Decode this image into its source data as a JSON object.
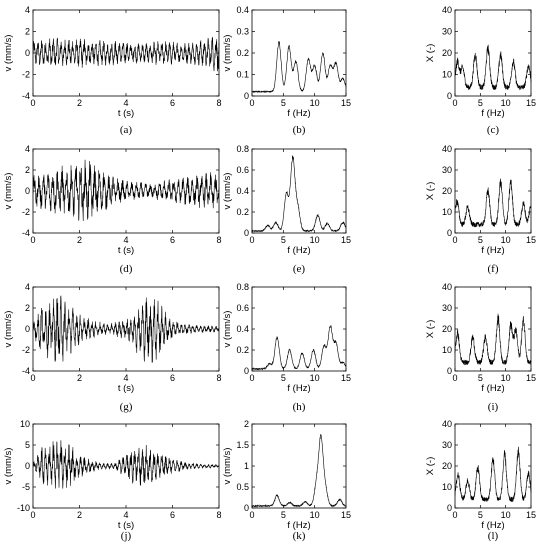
{
  "figure": {
    "rows": [
      {
        "time": {
          "label": "(a)",
          "xlabel": "t (s)",
          "ylabel": "v (mm/s)",
          "xlim": [
            0,
            8
          ],
          "ylim": [
            -4,
            4
          ],
          "xticks": [
            0,
            2,
            4,
            6,
            8
          ],
          "yticks": [
            -4,
            -2,
            0,
            2,
            4
          ],
          "envelope": [
            [
              0,
              1.2
            ],
            [
              0.5,
              1.4
            ],
            [
              1,
              1.6
            ],
            [
              1.5,
              1.3
            ],
            [
              2,
              1.5
            ],
            [
              2.5,
              1.3
            ],
            [
              3,
              1.2
            ],
            [
              3.5,
              1.2
            ],
            [
              4,
              1.1
            ],
            [
              4.5,
              1.0
            ],
            [
              5,
              1.0
            ],
            [
              5.5,
              1.2
            ],
            [
              6,
              1.1
            ],
            [
              6.5,
              1.0
            ],
            [
              7,
              1.1
            ],
            [
              7.5,
              1.5
            ],
            [
              8,
              2.2
            ]
          ],
          "cycles_per_s": 6
        },
        "spec": {
          "label": "(b)",
          "xlabel": "f (Hz)",
          "ylabel": "v (mm/s)",
          "xlim": [
            0,
            15
          ],
          "ylim": [
            0,
            0.4
          ],
          "xticks": [
            0,
            5,
            10,
            15
          ],
          "yticks": [
            0,
            0.1,
            0.2,
            0.3,
            0.4
          ],
          "peaks": [
            [
              4.3,
              0.23
            ],
            [
              5.9,
              0.21
            ],
            [
              7.0,
              0.14
            ],
            [
              9.0,
              0.15
            ],
            [
              10.0,
              0.12
            ],
            [
              11.3,
              0.18
            ],
            [
              12.5,
              0.12
            ],
            [
              13.4,
              0.13
            ],
            [
              14.5,
              0.06
            ]
          ],
          "floor": 0.02
        },
        "hvsr": {
          "label": "(c)",
          "xlabel": "f (Hz)",
          "ylabel": "X (-)",
          "xlim": [
            0,
            15
          ],
          "ylim": [
            0,
            40
          ],
          "xticks": [
            0,
            5,
            10,
            15
          ],
          "yticks": [
            0,
            10,
            20,
            30,
            40
          ],
          "peaks": [
            [
              0.5,
              12
            ],
            [
              1.5,
              9
            ],
            [
              4.0,
              15
            ],
            [
              6.5,
              18
            ],
            [
              9.0,
              15
            ],
            [
              11.5,
              12
            ],
            [
              14.5,
              10
            ]
          ],
          "floor": 4
        }
      },
      {
        "time": {
          "label": "(d)",
          "xlabel": "t (s)",
          "ylabel": "v (mm/s)",
          "xlim": [
            0,
            8
          ],
          "ylim": [
            -4,
            4
          ],
          "xticks": [
            0,
            2,
            4,
            6,
            8
          ],
          "yticks": [
            -4,
            -2,
            0,
            2,
            4
          ],
          "envelope": [
            [
              0,
              1.5
            ],
            [
              0.5,
              2.0
            ],
            [
              1,
              2.4
            ],
            [
              1.5,
              2.6
            ],
            [
              2,
              3.2
            ],
            [
              2.5,
              3.0
            ],
            [
              3,
              2.2
            ],
            [
              3.5,
              1.5
            ],
            [
              4,
              1.0
            ],
            [
              4.5,
              0.9
            ],
            [
              5,
              0.8
            ],
            [
              5.5,
              1.0
            ],
            [
              6,
              1.2
            ],
            [
              6.5,
              1.4
            ],
            [
              7,
              1.6
            ],
            [
              7.5,
              1.8
            ],
            [
              8,
              2.0
            ]
          ],
          "cycles_per_s": 5
        },
        "spec": {
          "label": "(e)",
          "xlabel": "f (Hz)",
          "ylabel": "v (mm/s)",
          "xlim": [
            0,
            15
          ],
          "ylim": [
            0,
            0.8
          ],
          "xticks": [
            0,
            5,
            10,
            15
          ],
          "yticks": [
            0,
            0.2,
            0.4,
            0.6,
            0.8
          ],
          "peaks": [
            [
              2.5,
              0.05
            ],
            [
              3.8,
              0.08
            ],
            [
              5.5,
              0.35
            ],
            [
              6.5,
              0.68
            ],
            [
              7.3,
              0.22
            ],
            [
              10.5,
              0.15
            ],
            [
              12.0,
              0.07
            ],
            [
              14.5,
              0.08
            ]
          ],
          "floor": 0.02
        },
        "hvsr": {
          "label": "(f)",
          "xlabel": "f (Hz)",
          "ylabel": "X (-)",
          "xlim": [
            0,
            15
          ],
          "ylim": [
            0,
            40
          ],
          "xticks": [
            0,
            5,
            10,
            15
          ],
          "yticks": [
            0,
            10,
            20,
            30,
            40
          ],
          "peaks": [
            [
              0.4,
              11
            ],
            [
              2.5,
              8
            ],
            [
              6.5,
              16
            ],
            [
              9.0,
              20
            ],
            [
              11.0,
              20
            ],
            [
              13.5,
              10
            ],
            [
              15,
              9
            ]
          ],
          "floor": 4
        }
      },
      {
        "time": {
          "label": "(g)",
          "xlabel": "t (s)",
          "ylabel": "v (mm/s)",
          "xlim": [
            0,
            8
          ],
          "ylim": [
            -4,
            4
          ],
          "xticks": [
            0,
            2,
            4,
            6,
            8
          ],
          "yticks": [
            -4,
            -2,
            0,
            2,
            4
          ],
          "envelope": [
            [
              0,
              0.5
            ],
            [
              0.3,
              2.5
            ],
            [
              0.8,
              3.0
            ],
            [
              1.2,
              3.8
            ],
            [
              1.7,
              2.2
            ],
            [
              2.2,
              1.2
            ],
            [
              2.7,
              0.8
            ],
            [
              3.2,
              0.6
            ],
            [
              3.7,
              0.8
            ],
            [
              4.2,
              1.5
            ],
            [
              4.7,
              3.0
            ],
            [
              5.2,
              3.6
            ],
            [
              5.6,
              2.0
            ],
            [
              6.0,
              1.0
            ],
            [
              6.5,
              0.6
            ],
            [
              7,
              0.4
            ],
            [
              8,
              0.3
            ]
          ],
          "cycles_per_s": 6
        },
        "spec": {
          "label": "(h)",
          "xlabel": "f (Hz)",
          "ylabel": "v (mm/s)",
          "xlim": [
            0,
            15
          ],
          "ylim": [
            0,
            0.8
          ],
          "xticks": [
            0,
            5,
            10,
            15
          ],
          "yticks": [
            0,
            0.2,
            0.4,
            0.6,
            0.8
          ],
          "peaks": [
            [
              2.8,
              0.05
            ],
            [
              4.0,
              0.3
            ],
            [
              6.0,
              0.18
            ],
            [
              8.0,
              0.15
            ],
            [
              9.8,
              0.18
            ],
            [
              11.5,
              0.22
            ],
            [
              12.5,
              0.4
            ],
            [
              13.4,
              0.24
            ],
            [
              14.5,
              0.06
            ]
          ],
          "floor": 0.02
        },
        "hvsr": {
          "label": "(i)",
          "xlabel": "f (Hz)",
          "ylabel": "X (-)",
          "xlim": [
            0,
            15
          ],
          "ylim": [
            0,
            40
          ],
          "xticks": [
            0,
            5,
            10,
            15
          ],
          "yticks": [
            0,
            10,
            20,
            30,
            40
          ],
          "peaks": [
            [
              0.5,
              14
            ],
            [
              3.5,
              12
            ],
            [
              6.0,
              12
            ],
            [
              8.5,
              21
            ],
            [
              11.0,
              18
            ],
            [
              12.0,
              15
            ],
            [
              13.5,
              20
            ]
          ],
          "floor": 4
        }
      },
      {
        "time": {
          "label": "(j)",
          "xlabel": "t (s)",
          "ylabel": "v (mm/s)",
          "xlim": [
            0,
            8
          ],
          "ylim": [
            -10,
            10
          ],
          "xticks": [
            0,
            2,
            4,
            6,
            8
          ],
          "yticks": [
            -10,
            -5,
            0,
            5,
            10
          ],
          "envelope": [
            [
              0,
              0.6
            ],
            [
              0.4,
              5.0
            ],
            [
              0.8,
              6.5
            ],
            [
              1.2,
              7.2
            ],
            [
              1.6,
              5.5
            ],
            [
              2.0,
              3.0
            ],
            [
              2.5,
              1.5
            ],
            [
              3.0,
              0.8
            ],
            [
              3.5,
              0.8
            ],
            [
              4.0,
              3.0
            ],
            [
              4.5,
              5.5
            ],
            [
              5.0,
              5.0
            ],
            [
              5.5,
              3.5
            ],
            [
              6,
              2.0
            ],
            [
              6.5,
              1.2
            ],
            [
              7,
              0.6
            ],
            [
              8,
              0.4
            ]
          ],
          "cycles_per_s": 6
        },
        "spec": {
          "label": "(k)",
          "xlabel": "f (Hz)",
          "ylabel": "v (mm/s)",
          "xlim": [
            0,
            15
          ],
          "ylim": [
            0,
            2
          ],
          "xticks": [
            0,
            5,
            10,
            15
          ],
          "yticks": [
            0,
            0.5,
            1,
            1.5,
            2
          ],
          "peaks": [
            [
              4.0,
              0.25
            ],
            [
              6.0,
              0.08
            ],
            [
              8.5,
              0.1
            ],
            [
              10.3,
              0.5
            ],
            [
              11.0,
              1.55
            ],
            [
              11.7,
              0.4
            ],
            [
              14.0,
              0.15
            ]
          ],
          "floor": 0.05
        },
        "hvsr": {
          "label": "(l)",
          "xlabel": "f (Hz)",
          "ylabel": "X (-)",
          "xlim": [
            0,
            15
          ],
          "ylim": [
            0,
            40
          ],
          "xticks": [
            0,
            5,
            10,
            15
          ],
          "yticks": [
            0,
            10,
            20,
            30,
            40
          ],
          "peaks": [
            [
              0.6,
              12
            ],
            [
              2.5,
              9
            ],
            [
              4.5,
              15
            ],
            [
              7.5,
              19
            ],
            [
              9.8,
              21
            ],
            [
              12.5,
              23
            ],
            [
              14.5,
              12
            ]
          ],
          "floor": 4
        }
      }
    ]
  }
}
